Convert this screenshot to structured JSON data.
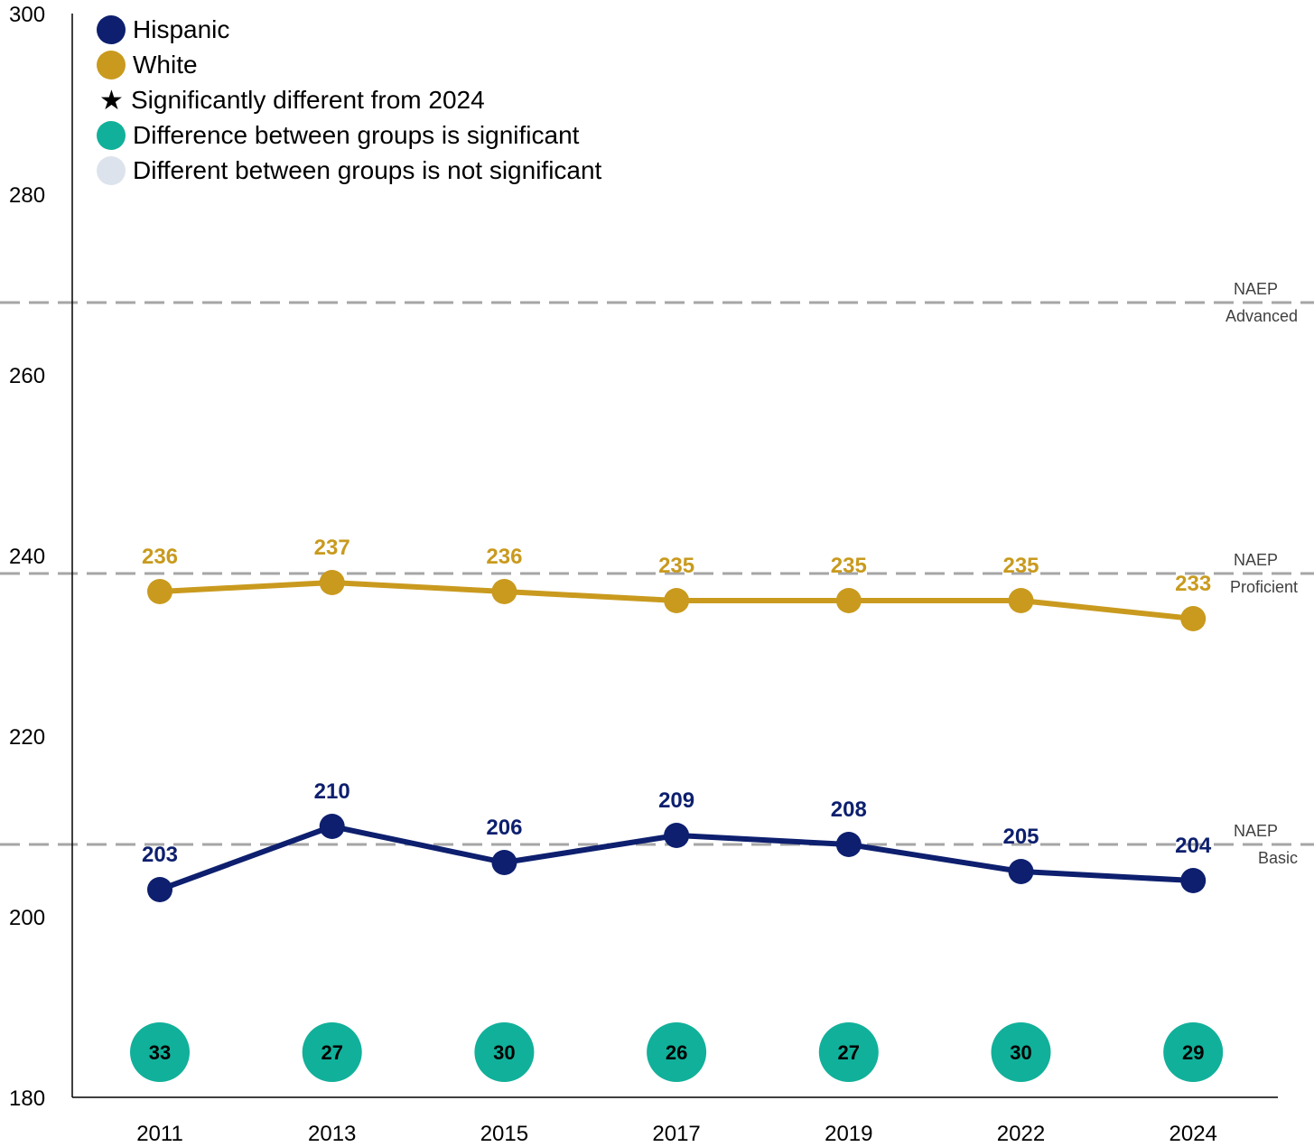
{
  "colors": {
    "hispanic": "#0d1f6e",
    "white": "#c99a1e",
    "gap_significant": "#11b09a",
    "gap_not_significant": "#dde3ec",
    "reference_line": "#a6a6a6",
    "axis": "#000000"
  },
  "legend": {
    "hispanic": "Hispanic",
    "white": "White",
    "asterisk_symbol": "★",
    "asterisk_note": "Significantly different from 2024",
    "gap_significant": "Difference between groups is significant",
    "gap_not_significant": "Different between groups is not significant"
  },
  "chart_data": {
    "type": "line",
    "title": "",
    "xlabel": "",
    "ylabel": "",
    "categories": [
      "2011",
      "2013",
      "2015",
      "2017",
      "2019",
      "2022",
      "2024"
    ],
    "ylim": [
      180,
      300
    ],
    "yticks": [
      180,
      200,
      220,
      240,
      260,
      280,
      300
    ],
    "grid": false,
    "legend_position": "top-left",
    "series": [
      {
        "name": "Hispanic",
        "values": [
          203,
          210,
          206,
          209,
          208,
          205,
          204
        ]
      },
      {
        "name": "White",
        "values": [
          236,
          237,
          236,
          235,
          235,
          235,
          233
        ]
      }
    ],
    "gaps": [
      33,
      27,
      30,
      26,
      27,
      30,
      29
    ],
    "gap_significant": [
      true,
      true,
      true,
      true,
      true,
      true,
      true
    ],
    "reference_lines": [
      {
        "value": 208,
        "label_top": "NAEP",
        "label_bottom": "Basic"
      },
      {
        "value": 238,
        "label_top": "NAEP",
        "label_bottom": "Proficient"
      },
      {
        "value": 268,
        "label_top": "NAEP",
        "label_bottom": "Advanced"
      }
    ]
  }
}
